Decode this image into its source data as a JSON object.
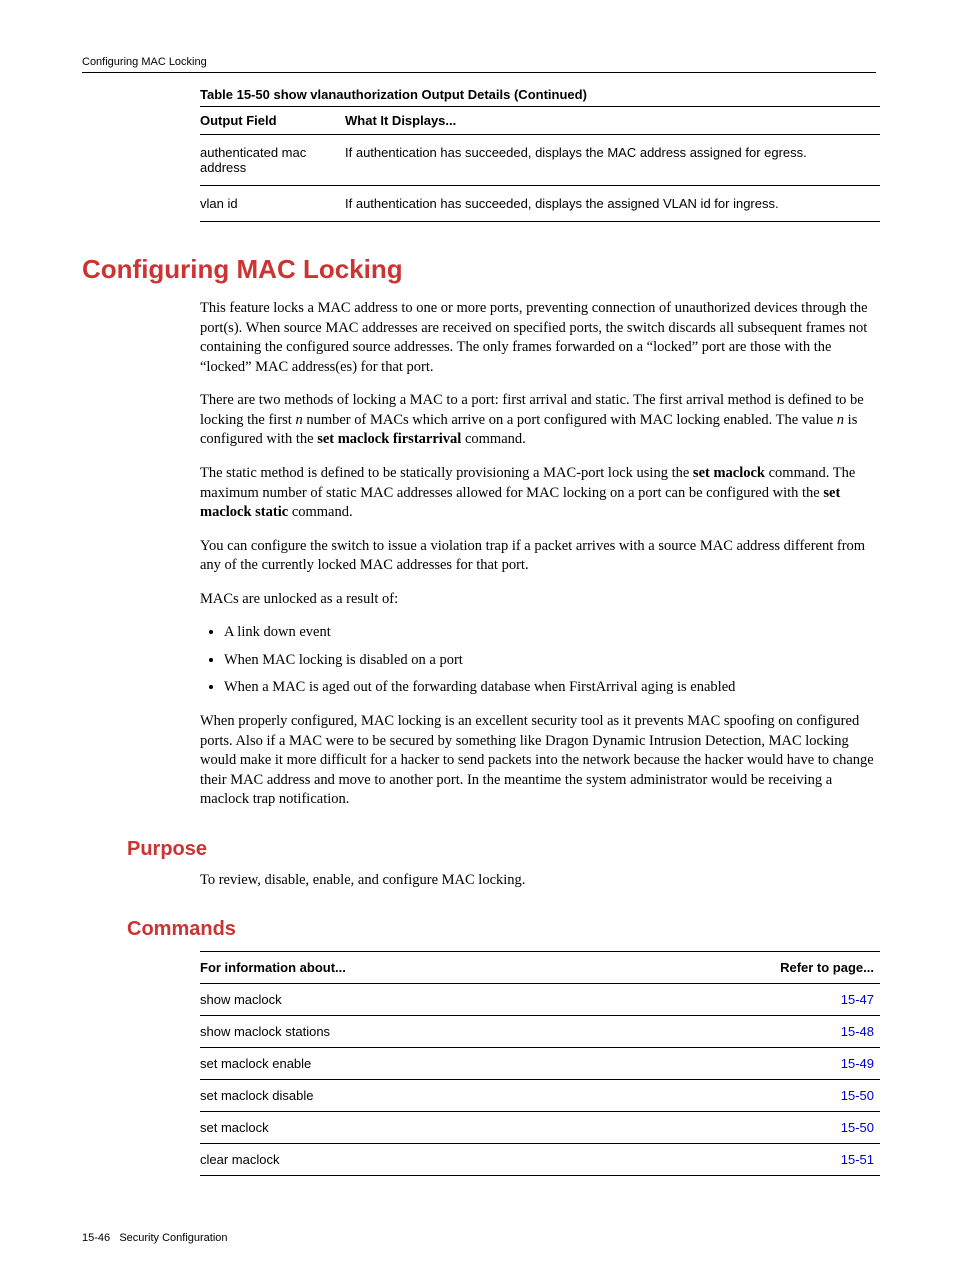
{
  "header": {
    "running": "Configuring MAC Locking"
  },
  "table1": {
    "caption": "Table 15-50   show vlanauthorization Output Details  (Continued)",
    "col1": "Output Field",
    "col2": "What It Displays...",
    "rows": [
      {
        "field": "authenticated mac address",
        "desc": "If authentication has succeeded, displays the MAC address assigned for egress."
      },
      {
        "field": "vlan id",
        "desc": "If authentication has succeeded, displays the assigned VLAN id for ingress."
      }
    ]
  },
  "h1": "Configuring MAC Locking",
  "para1": "This feature locks a MAC address to one or more ports, preventing connection of unauthorized devices through the port(s). When source MAC addresses are received on specified ports, the switch discards all subsequent frames not containing the configured source addresses. The only frames forwarded on a “locked” port are those with the “locked” MAC address(es) for that port.",
  "para2a": "There are two methods of locking a MAC to a port: first arrival and static. The first arrival method is defined to be locking the first ",
  "para2_n1": "n",
  "para2b": " number of MACs which arrive on a port configured with MAC locking enabled. The value ",
  "para2_n2": "n",
  "para2c": " is configured with the ",
  "para2_cmd": "set maclock firstarrival",
  "para2d": " command.",
  "para3a": "The static method is defined to be statically provisioning a MAC-port lock using the ",
  "para3_cmd1": "set maclock",
  "para3b": " command. The maximum number of static MAC addresses allowed for MAC locking on a port can be configured with the ",
  "para3_cmd2": "set maclock static",
  "para3c": " command.",
  "para4": "You can configure the switch to issue a violation trap if a packet arrives with a source MAC address different from any of the currently locked MAC addresses for that port.",
  "para5": "MACs are unlocked as a result of:",
  "bullets": [
    "A link down event",
    "When MAC locking is disabled on a port",
    "When a MAC is aged out of the forwarding database when FirstArrival aging is enabled"
  ],
  "para6": "When properly configured, MAC locking is an excellent security tool as it prevents MAC spoofing on configured ports. Also if a MAC were to be secured by something like Dragon Dynamic Intrusion Detection, MAC locking would make it more difficult for a hacker to send packets into the network because the hacker would have to change their MAC address and move to another port. In the meantime the system administrator would be receiving a maclock trap notification.",
  "purpose": {
    "heading": "Purpose",
    "text": "To review, disable, enable, and configure MAC locking."
  },
  "commands": {
    "heading": "Commands",
    "col1": "For information about...",
    "col2": "Refer to page...",
    "rows": [
      {
        "cmd": "show maclock",
        "page": "15-47"
      },
      {
        "cmd": "show maclock stations",
        "page": "15-48"
      },
      {
        "cmd": "set maclock enable",
        "page": "15-49"
      },
      {
        "cmd": "set maclock disable",
        "page": "15-50"
      },
      {
        "cmd": "set maclock",
        "page": "15-50"
      },
      {
        "cmd": "clear maclock",
        "page": "15-51"
      }
    ]
  },
  "footer": {
    "page": "15-46",
    "section": "Security Configuration"
  }
}
